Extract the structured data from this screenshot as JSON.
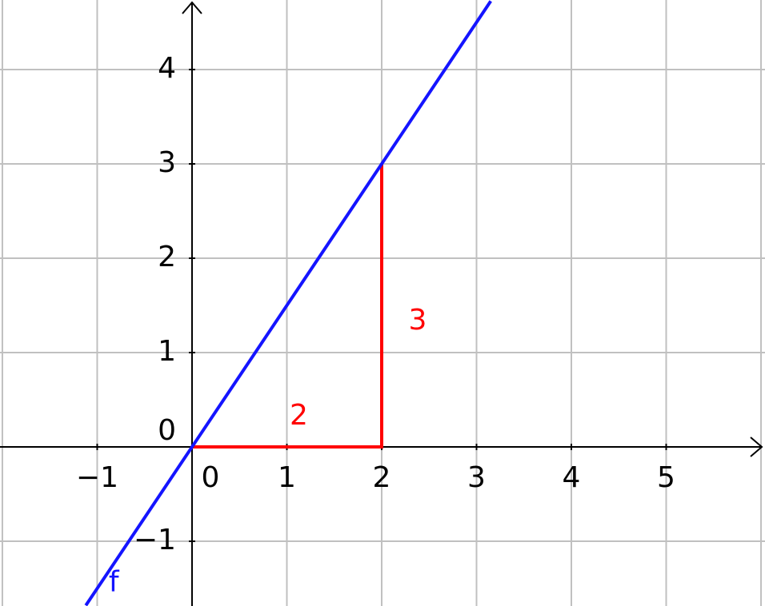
{
  "chart_data": {
    "type": "line",
    "x": [
      -1.12,
      3.15
    ],
    "series": [
      {
        "name": "f",
        "color": "#1414ff",
        "values": [
          -1.68,
          4.725
        ]
      }
    ],
    "triangle": {
      "color": "#ff0000",
      "x": [
        0,
        2,
        2
      ],
      "values": [
        0,
        0,
        3
      ]
    },
    "annotations": [
      "2",
      "3"
    ],
    "xlim": [
      -2.025,
      6.042
    ],
    "ylim": [
      -1.686,
      4.737
    ],
    "xticks": [
      {
        "value": -1,
        "label": "−1"
      },
      0,
      1,
      2,
      3,
      4,
      5
    ],
    "yticks": [
      {
        "value": -1,
        "label": "−1"
      },
      0,
      1,
      2,
      3,
      4
    ],
    "xgrid": [
      -2,
      -1,
      1,
      2,
      3,
      4,
      5,
      6
    ],
    "ygrid": [
      -1,
      1,
      2,
      3,
      4
    ],
    "grid": true
  }
}
